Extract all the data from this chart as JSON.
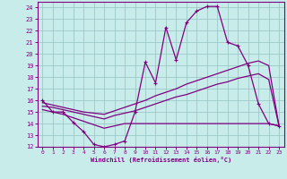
{
  "title": "",
  "xlabel": "Windchill (Refroidissement éolien,°C)",
  "bg_color": "#c8ecea",
  "grid_color": "#9ec8c8",
  "line_color": "#800080",
  "xlim": [
    -0.5,
    23.5
  ],
  "ylim": [
    12,
    24.5
  ],
  "xticks": [
    0,
    1,
    2,
    3,
    4,
    5,
    6,
    7,
    8,
    9,
    10,
    11,
    12,
    13,
    14,
    15,
    16,
    17,
    18,
    19,
    20,
    21,
    22,
    23
  ],
  "yticks": [
    12,
    13,
    14,
    15,
    16,
    17,
    18,
    19,
    20,
    21,
    22,
    23,
    24
  ],
  "line1_x": [
    0,
    1,
    2,
    3,
    4,
    5,
    6,
    7,
    8,
    9,
    10,
    11,
    12,
    13,
    14,
    15,
    16,
    17,
    18,
    19,
    20,
    21,
    22,
    23
  ],
  "line1_y": [
    16,
    15,
    15,
    14.1,
    13.3,
    12.2,
    12,
    12.2,
    12.5,
    15,
    19.3,
    17.5,
    22.3,
    19.5,
    22.7,
    23.7,
    24.1,
    24.1,
    21.0,
    20.7,
    19.0,
    15.7,
    14.0,
    13.8
  ],
  "line2_x": [
    0,
    1,
    2,
    3,
    4,
    5,
    6,
    7,
    8,
    9,
    10,
    11,
    12,
    13,
    14,
    15,
    16,
    17,
    18,
    19,
    20,
    21,
    22,
    23
  ],
  "line2_y": [
    15.8,
    15.6,
    15.4,
    15.2,
    15.0,
    14.9,
    14.8,
    15.1,
    15.4,
    15.7,
    16.0,
    16.4,
    16.7,
    17.0,
    17.4,
    17.7,
    18.0,
    18.3,
    18.6,
    18.9,
    19.2,
    19.4,
    19.0,
    13.8
  ],
  "line3_x": [
    0,
    1,
    2,
    3,
    4,
    5,
    6,
    7,
    8,
    9,
    10,
    11,
    12,
    13,
    14,
    15,
    16,
    17,
    18,
    19,
    20,
    21,
    22,
    23
  ],
  "line3_y": [
    15.5,
    15.4,
    15.2,
    15.0,
    14.8,
    14.6,
    14.4,
    14.7,
    14.9,
    15.1,
    15.4,
    15.7,
    16.0,
    16.3,
    16.5,
    16.8,
    17.1,
    17.4,
    17.6,
    17.9,
    18.1,
    18.3,
    17.8,
    13.8
  ],
  "line4_x": [
    0,
    1,
    2,
    3,
    4,
    5,
    6,
    7,
    8,
    9,
    10,
    11,
    12,
    13,
    14,
    15,
    16,
    17,
    18,
    19,
    20,
    21,
    22,
    23
  ],
  "line4_y": [
    15.2,
    15.0,
    14.8,
    14.5,
    14.2,
    13.9,
    13.6,
    13.8,
    14.0,
    14.0,
    14.0,
    14.0,
    14.0,
    14.0,
    14.0,
    14.0,
    14.0,
    14.0,
    14.0,
    14.0,
    14.0,
    14.0,
    14.0,
    13.8
  ]
}
